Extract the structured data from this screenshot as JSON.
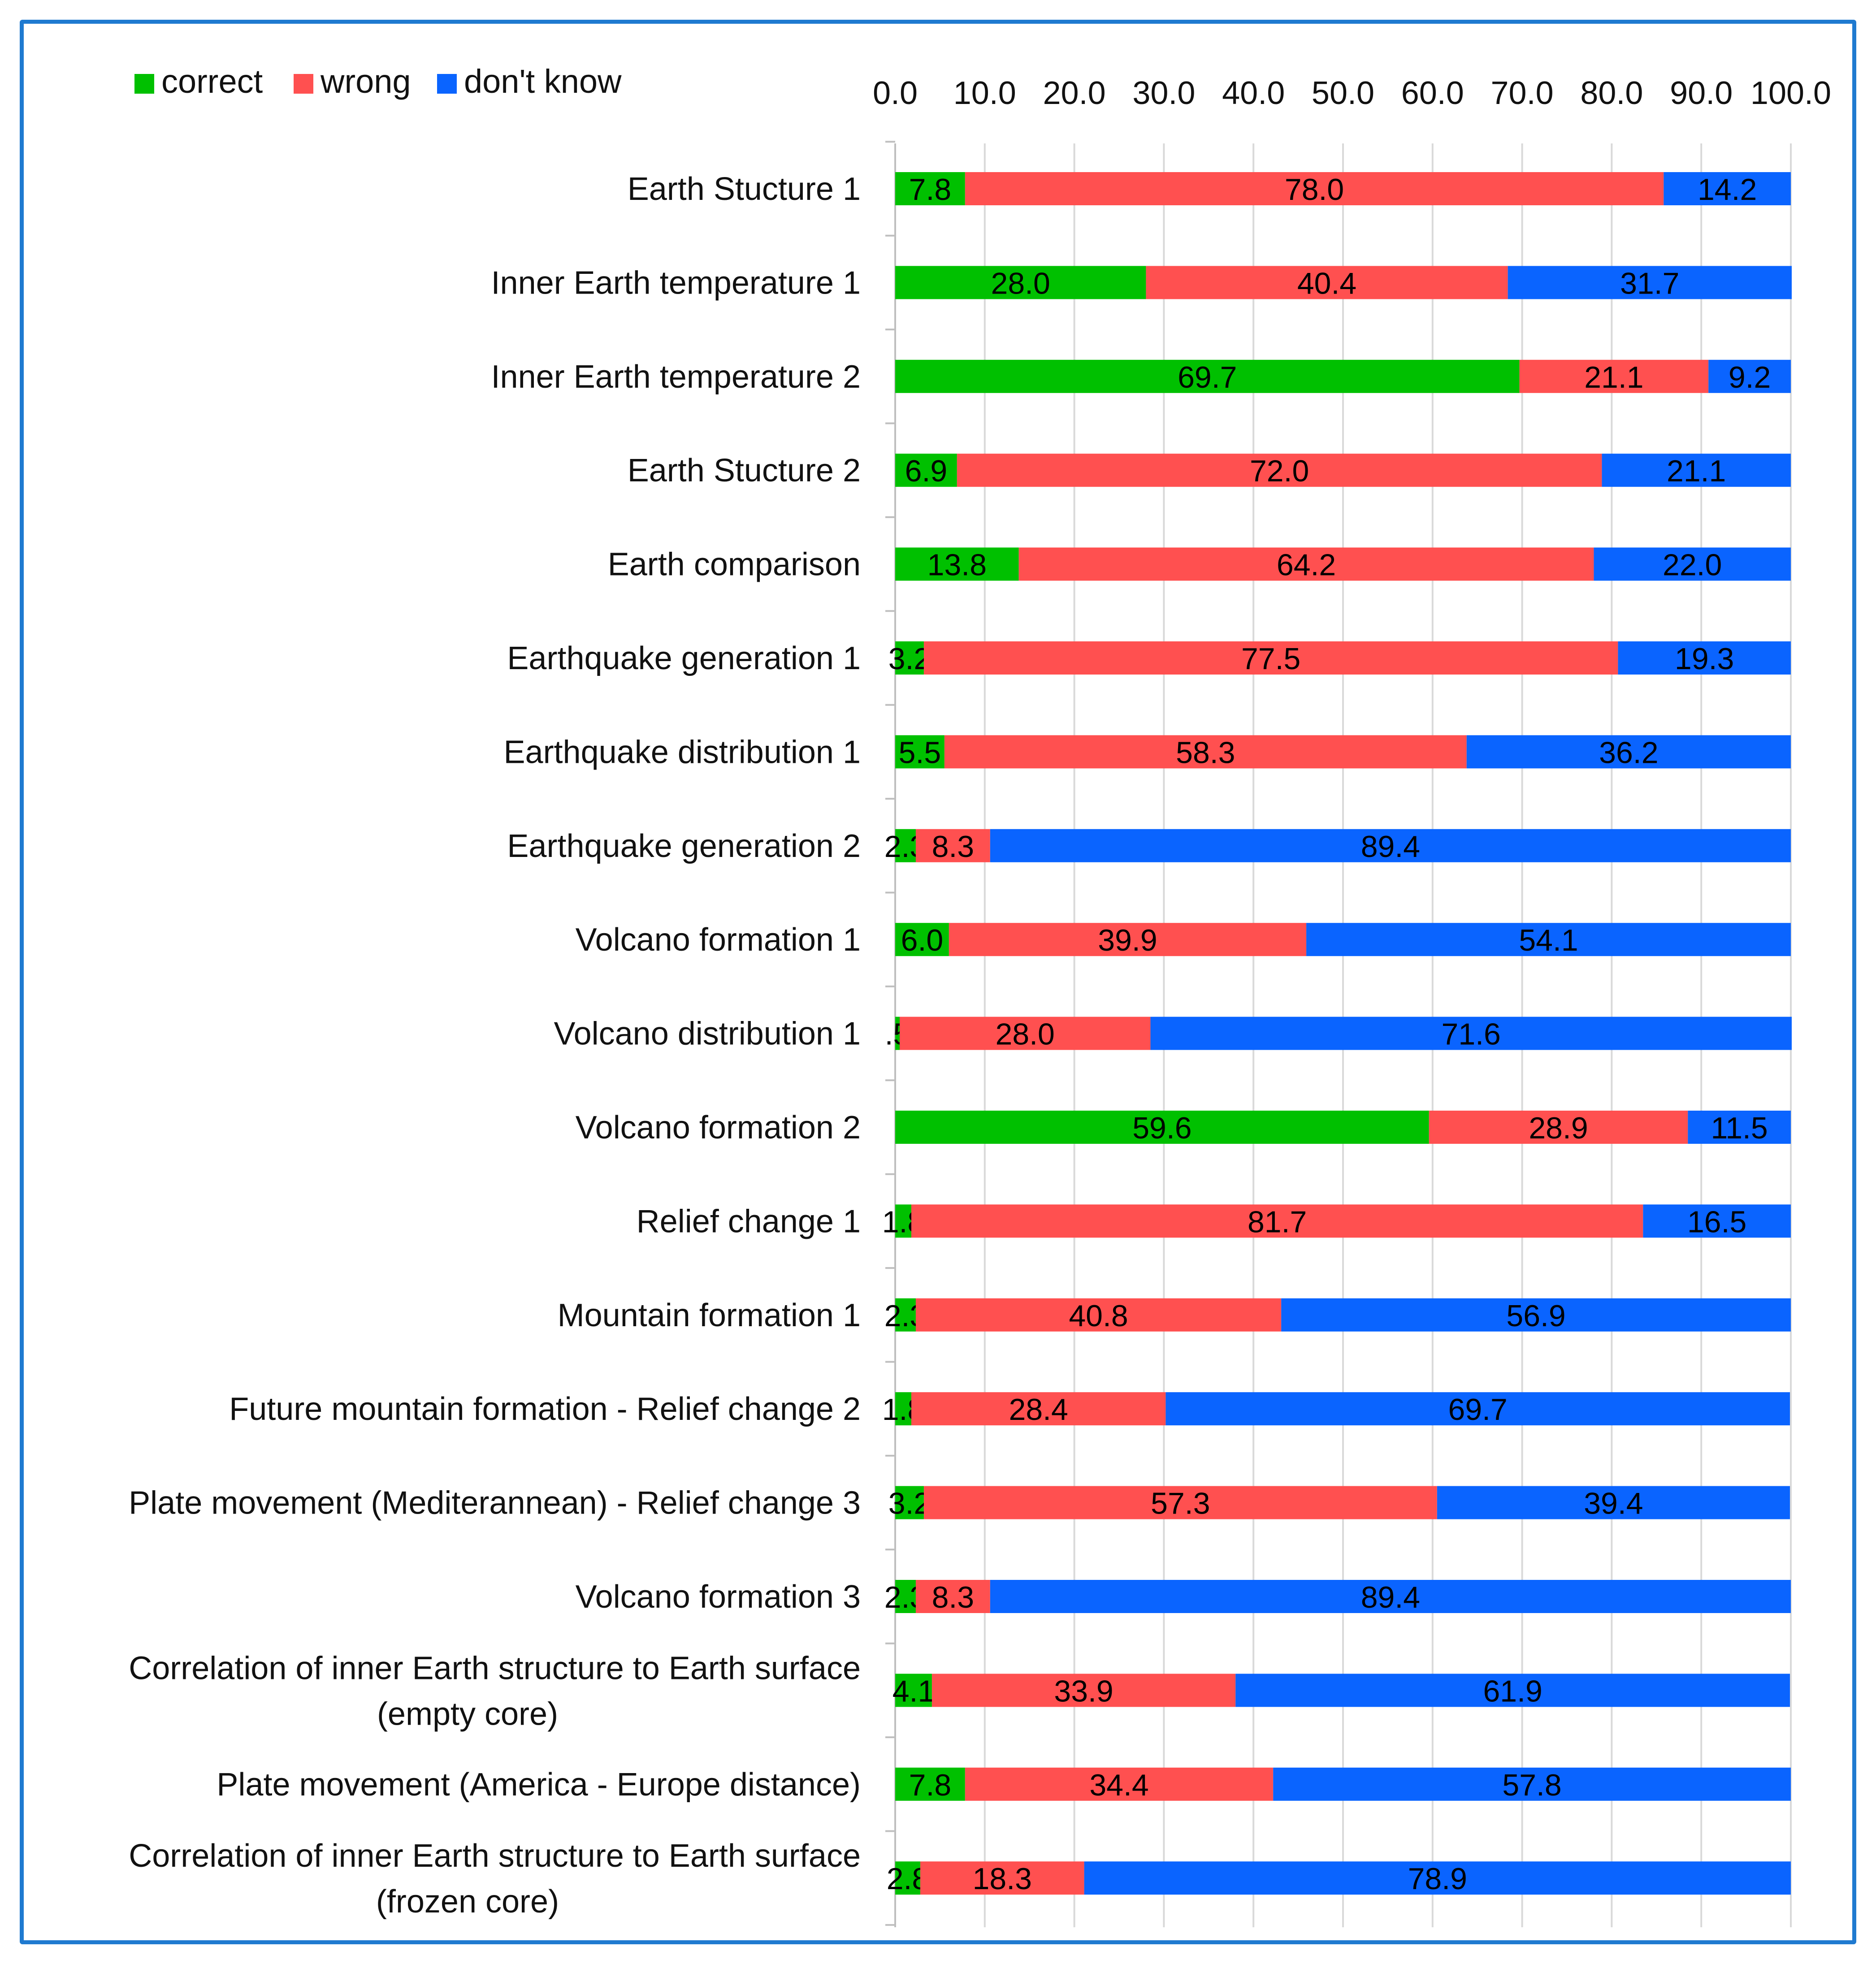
{
  "chart_data": {
    "type": "bar",
    "orientation": "horizontal",
    "stacked": true,
    "xlim": [
      0,
      100
    ],
    "x_ticks": [
      "0.0",
      "10.0",
      "20.0",
      "30.0",
      "40.0",
      "50.0",
      "60.0",
      "70.0",
      "80.0",
      "90.0",
      "100.0"
    ],
    "x_axis_position": "top",
    "grid": true,
    "legend": {
      "placement": "top-left"
    },
    "colors": {
      "correct": "#00c000",
      "wrong": "#ff5050",
      "don't know": "#0a64ff"
    },
    "categories": [
      "Earth Stucture 1",
      "Inner Earth temperature 1",
      "Inner Earth temperature 2",
      "Earth Stucture 2",
      "Earth comparison",
      "Earthquake generation 1",
      "Earthquake distribution 1",
      "Earthquake generation 2",
      "Volcano formation 1",
      "Volcano distribution 1",
      "Volcano formation 2",
      "Relief change 1",
      "Mountain formation 1",
      "Future mountain formation -  Relief change 2",
      "Plate movement (Mediterannean) - Relief change 3",
      "Volcano formation 3",
      "Correlation of inner Earth structure to Earth surface (empty core)",
      "Plate movement (America - Europe distance)",
      "Correlation of inner Earth structure to Earth surface (frozen core)"
    ],
    "series": [
      {
        "name": "correct",
        "values": [
          7.8,
          28.0,
          69.7,
          6.9,
          13.8,
          3.2,
          5.5,
          2.3,
          6.0,
          0.5,
          59.6,
          1.8,
          2.3,
          1.8,
          3.2,
          2.3,
          4.1,
          7.8,
          2.8
        ],
        "labels": [
          "7.8",
          "28.0",
          "69.7",
          "6.9",
          "13.8",
          "3.2",
          "5.5",
          "2.3",
          "6.0",
          ".5",
          "59.6",
          "1.8",
          "2.3",
          "1.8",
          "3.2",
          "2.3",
          "4.1",
          "7.8",
          "2.8"
        ]
      },
      {
        "name": "wrong",
        "values": [
          78.0,
          40.4,
          21.1,
          72.0,
          64.2,
          77.5,
          58.3,
          8.3,
          39.9,
          28.0,
          28.9,
          81.7,
          40.8,
          28.4,
          57.3,
          8.3,
          33.9,
          34.4,
          18.3
        ],
        "labels": [
          "78.0",
          "40.4",
          "21.1",
          "72.0",
          "64.2",
          "77.5",
          "58.3",
          "8.3",
          "39.9",
          "28.0",
          "28.9",
          "81.7",
          "40.8",
          "28.4",
          "57.3",
          "8.3",
          "33.9",
          "34.4",
          "18.3"
        ]
      },
      {
        "name": "don't know",
        "values": [
          14.2,
          31.7,
          9.2,
          21.1,
          22.0,
          19.3,
          36.2,
          89.4,
          54.1,
          71.6,
          11.5,
          16.5,
          56.9,
          69.7,
          39.4,
          89.4,
          61.9,
          57.8,
          78.9
        ],
        "labels": [
          "14.2",
          "31.7",
          "9.2",
          "21.1",
          "22.0",
          "19.3",
          "36.2",
          "89.4",
          "54.1",
          "71.6",
          "11.5",
          "16.5",
          "56.9",
          "69.7",
          "39.4",
          "89.4",
          "61.9",
          "57.8",
          "78.9"
        ]
      }
    ]
  }
}
